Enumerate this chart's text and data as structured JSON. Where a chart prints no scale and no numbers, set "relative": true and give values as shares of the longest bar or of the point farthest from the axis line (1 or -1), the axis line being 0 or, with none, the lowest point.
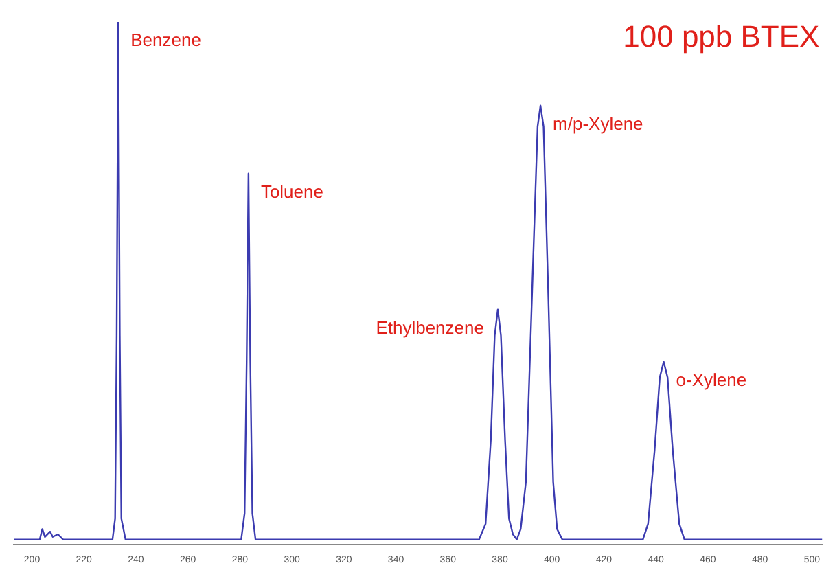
{
  "chart_data": {
    "type": "line",
    "title": "100 ppb BTEX",
    "relative": true,
    "tick_labels": "x",
    "color": "#3b3bb0",
    "xlim": [
      193,
      504
    ],
    "xticks": [
      200,
      220,
      240,
      260,
      280,
      300,
      320,
      340,
      360,
      380,
      400,
      420,
      440,
      460,
      480,
      500
    ],
    "x": [
      193,
      203,
      204,
      205,
      207,
      208,
      210,
      212,
      231,
      232,
      232.6,
      233.2,
      233.8,
      234.4,
      236,
      280.5,
      281.8,
      282.6,
      283.3,
      284,
      284.8,
      286,
      372,
      374.5,
      376.5,
      378,
      379.2,
      380.4,
      382,
      383.5,
      385,
      386.5,
      388,
      390,
      392.5,
      394.5,
      395.6,
      396.8,
      398.5,
      400.5,
      402,
      404,
      435,
      437,
      439.5,
      441.5,
      443,
      444.5,
      446.5,
      449,
      451,
      504
    ],
    "values": [
      0.01,
      0.01,
      0.03,
      0.015,
      0.025,
      0.015,
      0.02,
      0.01,
      0.01,
      0.05,
      0.4,
      1,
      0.4,
      0.05,
      0.01,
      0.01,
      0.06,
      0.35,
      0.71,
      0.35,
      0.06,
      0.01,
      0.01,
      0.04,
      0.2,
      0.4,
      0.45,
      0.4,
      0.2,
      0.05,
      0.02,
      0.01,
      0.03,
      0.12,
      0.5,
      0.8,
      0.84,
      0.8,
      0.5,
      0.12,
      0.03,
      0.01,
      0.01,
      0.04,
      0.18,
      0.32,
      0.35,
      0.32,
      0.18,
      0.04,
      0.01,
      0.01
    ],
    "annotations": [
      {
        "text": "Benzene",
        "x": 233.2,
        "y": 1
      },
      {
        "text": "Toluene",
        "x": 283.3,
        "y": 0.71
      },
      {
        "text": "Ethylbenzene",
        "x": 379.2,
        "y": 0.45
      },
      {
        "text": "m/p-Xylene",
        "x": 395.6,
        "y": 0.84
      },
      {
        "text": "o-Xylene",
        "x": 443,
        "y": 0.35
      }
    ]
  }
}
